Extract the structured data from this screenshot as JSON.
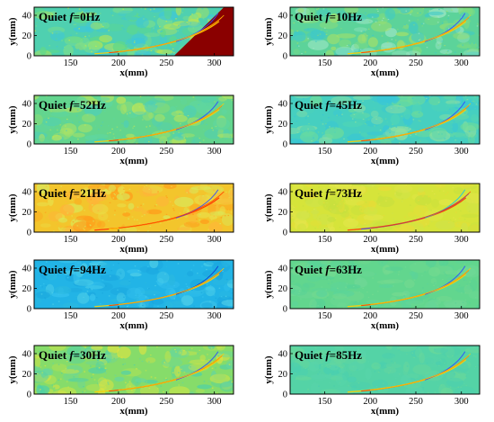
{
  "panels": [
    {
      "title_prefix": "Quiet ",
      "f_symbol": "f",
      "title_suffix": "=0Hz",
      "x_label": "x(mm)",
      "y_label": "y(mm)",
      "x_ticks": [
        "150",
        "200",
        "250",
        "300"
      ],
      "y_ticks": [
        "0",
        "20",
        "40"
      ],
      "background": "#4fd0b0",
      "noise": [
        "#7fe08a",
        "#3fc7d8",
        "#c7e84a",
        "#5fd88a"
      ],
      "shock": [
        "#ffd000",
        "#ff3b00",
        "#2f4bff"
      ],
      "accent": "#8a0000"
    },
    {
      "title_prefix": "Quiet ",
      "f_symbol": "f",
      "title_suffix": "=10Hz",
      "x_label": "x(mm)",
      "y_label": "y(mm)",
      "x_ticks": [
        "150",
        "200",
        "250",
        "300"
      ],
      "y_ticks": [
        "0",
        "20",
        "40"
      ],
      "background": "#5cd39a",
      "noise": [
        "#a3e06a",
        "#3fc9c8",
        "#7fdc80",
        "#9fe6c6"
      ],
      "shock": [
        "#ffd000",
        "#ff3b00",
        "#2f4bff"
      ]
    },
    {
      "title_prefix": "Quiet ",
      "f_symbol": "f",
      "title_suffix": "=52Hz",
      "x_label": "x(mm)",
      "y_label": "y(mm)",
      "x_ticks": [
        "150",
        "200",
        "250",
        "300"
      ],
      "y_ticks": [
        "0",
        "20",
        "40"
      ],
      "background": "#63d58e",
      "noise": [
        "#9fe06c",
        "#4fcfb8",
        "#c2e656",
        "#5fd6a0"
      ],
      "shock": [
        "#ffd000",
        "#ff3b00",
        "#2f4bff"
      ]
    },
    {
      "title_prefix": "Quiet ",
      "f_symbol": "f",
      "title_suffix": "=45Hz",
      "x_label": "x(mm)",
      "y_label": "y(mm)",
      "x_ticks": [
        "150",
        "200",
        "250",
        "300"
      ],
      "y_ticks": [
        "0",
        "20",
        "40"
      ],
      "background": "#46cfc0",
      "noise": [
        "#6fdc98",
        "#38c6d6",
        "#8fe0a0",
        "#50d4b6"
      ],
      "shock": [
        "#ffd000",
        "#ff3b00",
        "#2f4bff"
      ]
    },
    {
      "title_prefix": "Quiet ",
      "f_symbol": "f",
      "title_suffix": "=21Hz",
      "x_label": "x(mm)",
      "y_label": "y(mm)",
      "x_ticks": [
        "150",
        "200",
        "250",
        "300"
      ],
      "y_ticks": [
        "0",
        "20",
        "40"
      ],
      "background": "#f3c52c",
      "noise": [
        "#ff9c1a",
        "#e8e04a",
        "#ffb43a",
        "#d9e85a"
      ],
      "shock": [
        "#ff2a00",
        "#ffd000",
        "#2f4bff"
      ]
    },
    {
      "title_prefix": "Quiet ",
      "f_symbol": "f",
      "title_suffix": "=73Hz",
      "x_label": "x(mm)",
      "y_label": "y(mm)",
      "x_ticks": [
        "150",
        "200",
        "250",
        "300"
      ],
      "y_ticks": [
        "0",
        "20",
        "40"
      ],
      "background": "#d6e43a",
      "noise": [
        "#e2e64a",
        "#c8e03e",
        "#e8dc38",
        "#cfe34a"
      ],
      "shock": [
        "#ff3b00",
        "#2f4bff",
        "#18c6e6"
      ]
    },
    {
      "title_prefix": "Quiet ",
      "f_symbol": "f",
      "title_suffix": "=94Hz",
      "x_label": "x(mm)",
      "y_label": "y(mm)",
      "x_ticks": [
        "150",
        "200",
        "250",
        "300"
      ],
      "y_ticks": [
        "0",
        "20",
        "40"
      ],
      "background": "#22b4e6",
      "noise": [
        "#38c4ee",
        "#1aa6de",
        "#4fcfe8",
        "#2ab8e0"
      ],
      "shock": [
        "#ffd000",
        "#ff3b00",
        "#0a3bd0"
      ]
    },
    {
      "title_prefix": "Quiet ",
      "f_symbol": "f",
      "title_suffix": "=63Hz",
      "x_label": "x(mm)",
      "y_label": "y(mm)",
      "x_ticks": [
        "150",
        "200",
        "250",
        "300"
      ],
      "y_ticks": [
        "0",
        "20",
        "40"
      ],
      "background": "#62d68e",
      "noise": [
        "#6fd896",
        "#58d296",
        "#76da90",
        "#5cd49a"
      ],
      "shock": [
        "#ffd000",
        "#ff3b00",
        "#2f4bff"
      ]
    },
    {
      "title_prefix": "Quiet ",
      "f_symbol": "f",
      "title_suffix": "=30Hz",
      "x_label": "x(mm)",
      "y_label": "y(mm)",
      "x_ticks": [
        "150",
        "200",
        "250",
        "300"
      ],
      "y_ticks": [
        "0",
        "20",
        "40"
      ],
      "background": "#86dc6a",
      "noise": [
        "#c4e44c",
        "#4fd0a8",
        "#e0e440",
        "#66d6a0"
      ],
      "shock": [
        "#ffd000",
        "#ff3b00",
        "#2f4bff"
      ]
    },
    {
      "title_prefix": "Quiet ",
      "f_symbol": "f",
      "title_suffix": "=85Hz",
      "x_label": "x(mm)",
      "y_label": "y(mm)",
      "x_ticks": [
        "150",
        "200",
        "250",
        "300"
      ],
      "y_ticks": [
        "0",
        "20",
        "40"
      ],
      "background": "#54d3a6",
      "noise": [
        "#62d6a0",
        "#4acfb0",
        "#6ad89a",
        "#58d4aa"
      ],
      "shock": [
        "#ffd000",
        "#ff3b00",
        "#2f4bff"
      ]
    }
  ]
}
